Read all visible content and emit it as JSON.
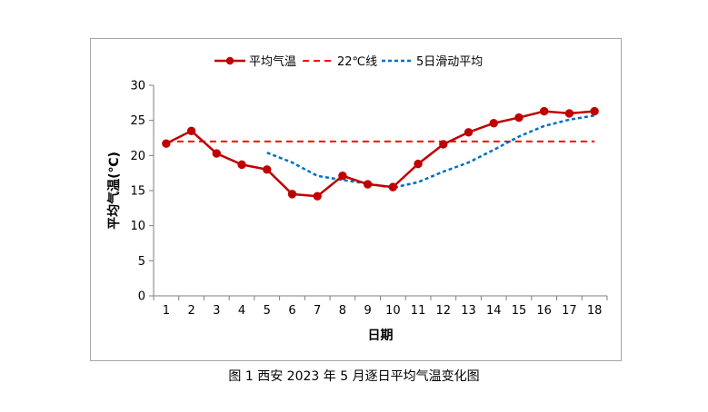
{
  "chart_data": {
    "type": "line",
    "x": [
      1,
      2,
      3,
      4,
      5,
      6,
      7,
      8,
      9,
      10,
      11,
      12,
      13,
      14,
      15,
      16,
      17,
      18
    ],
    "series": [
      {
        "name": "平均气温",
        "style": "solid-marker",
        "color": "#c00000",
        "values": [
          21.7,
          23.5,
          20.3,
          18.7,
          18.0,
          14.5,
          14.2,
          17.1,
          15.9,
          15.5,
          18.8,
          21.6,
          23.3,
          24.6,
          25.4,
          26.3,
          26.0,
          26.3
        ]
      },
      {
        "name": "22℃线",
        "style": "dashed",
        "color": "#ff0000",
        "values": [
          22,
          22,
          22,
          22,
          22,
          22,
          22,
          22,
          22,
          22,
          22,
          22,
          22,
          22,
          22,
          22,
          22,
          22
        ]
      },
      {
        "name": "5日滑动平均",
        "style": "dashed",
        "color": "#0070c0",
        "values": [
          null,
          null,
          null,
          null,
          20.4,
          19.0,
          17.1,
          16.5,
          16.0,
          15.4,
          16.2,
          17.7,
          19.0,
          20.8,
          22.7,
          24.2,
          25.1,
          25.7
        ]
      }
    ],
    "xlabel": "日期",
    "ylabel": "平均气温(℃)",
    "ylim": [
      0,
      30
    ],
    "yticks": [
      0,
      5,
      10,
      15,
      20,
      25,
      30
    ],
    "grid": false,
    "legend": "top-center"
  },
  "caption": "图 1  西安 2023 年 5 月逐日平均气温变化图"
}
